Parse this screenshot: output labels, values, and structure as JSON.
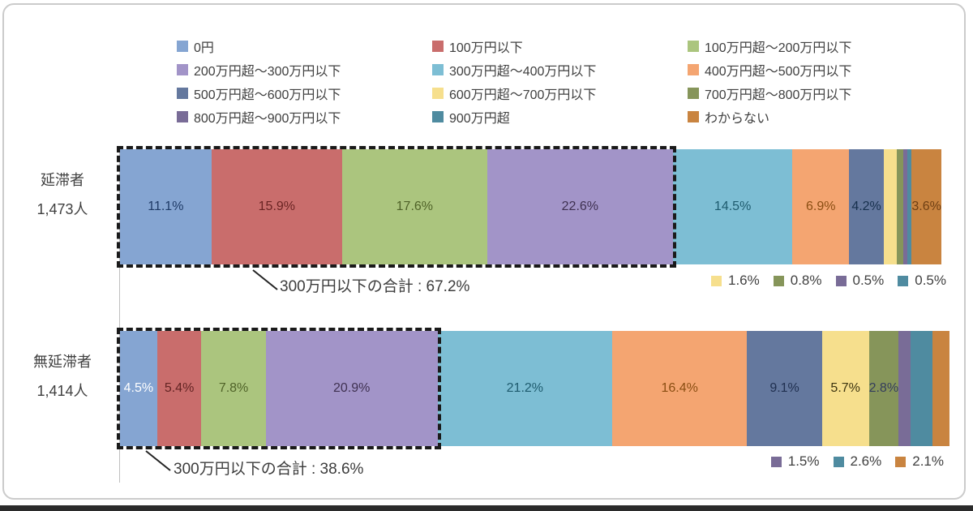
{
  "figure": {
    "background": "#ffffff",
    "frame_border_color": "#cbcbcb",
    "bottom_strip_color": "#2b2b2b",
    "dashed_box_color": "#1a1a1a"
  },
  "chart_data": {
    "type": "bar",
    "stacked": true,
    "orientation": "horizontal",
    "unit": "%",
    "x_range": [
      0,
      100
    ],
    "grid": false,
    "legend_position": "top",
    "categories": [
      "延滞者 1,473人",
      "無延滞者 1,414人"
    ],
    "series": [
      {
        "name": "0円",
        "color": "#85A5D2",
        "values": [
          11.1,
          4.5
        ]
      },
      {
        "name": "100万円以下",
        "color": "#C96D6C",
        "values": [
          15.9,
          5.4
        ]
      },
      {
        "name": "100万円超〜200万円以下",
        "color": "#ABC57E",
        "values": [
          17.6,
          7.8
        ]
      },
      {
        "name": "200万円超〜300万円以下",
        "color": "#A294C8",
        "values": [
          22.6,
          20.9
        ]
      },
      {
        "name": "300万円超〜400万円以下",
        "color": "#7DBED4",
        "values": [
          14.5,
          21.2
        ]
      },
      {
        "name": "400万円超〜500万円以下",
        "color": "#F4A571",
        "values": [
          6.9,
          16.4
        ]
      },
      {
        "name": "500万円超〜600万円以下",
        "color": "#64789E",
        "values": [
          4.2,
          9.1
        ]
      },
      {
        "name": "600万円超〜700万円以下",
        "color": "#F6DF8D",
        "values": [
          1.6,
          5.7
        ]
      },
      {
        "name": "700万円超〜800万円以下",
        "color": "#86955A",
        "values": [
          0.8,
          2.8
        ]
      },
      {
        "name": "800万円超〜900万円以下",
        "color": "#796C97",
        "values": [
          0.5,
          1.5
        ]
      },
      {
        "name": "900万円超",
        "color": "#4F8BA0",
        "values": [
          0.5,
          2.6
        ]
      },
      {
        "name": "わからない",
        "color": "#C98440",
        "values": [
          3.6,
          2.1
        ]
      }
    ],
    "bars": [
      {
        "category_line1": "延滞者",
        "category_line2": "1,473人",
        "inside": [
          true,
          true,
          true,
          true,
          true,
          true,
          true,
          false,
          false,
          false,
          false,
          true
        ],
        "label_colors": [
          "#1F3B67",
          "#6A2423",
          "#4F6228",
          "#3F3151",
          "#1E5B6E",
          "#8A4E12",
          "#17304D",
          "",
          "",
          "",
          "",
          "#6E3F14"
        ],
        "annotation": "300万円以下の合計 : 67.2%",
        "box_sum_label": "67.2%",
        "callouts": [
          {
            "series_index": 7,
            "text": "1.6%"
          },
          {
            "series_index": 8,
            "text": "0.8%"
          },
          {
            "series_index": 9,
            "text": "0.5%"
          },
          {
            "series_index": 10,
            "text": "0.5%"
          }
        ]
      },
      {
        "category_line1": "無延滞者",
        "category_line2": "1,414人",
        "inside": [
          true,
          true,
          true,
          true,
          true,
          true,
          true,
          true,
          true,
          false,
          false,
          false
        ],
        "label_colors": [
          "#FFFFFF",
          "#632423",
          "#4F6228",
          "#3F3151",
          "#1E5B6E",
          "#8A4E12",
          "#203050",
          "#3D3511",
          "#333C5C",
          "",
          "",
          ""
        ],
        "annotation": "300万円以下の合計 : 38.6%",
        "box_sum_label": "38.6%",
        "callouts": [
          {
            "series_index": 9,
            "text": "1.5%"
          },
          {
            "series_index": 10,
            "text": "2.6%"
          },
          {
            "series_index": 11,
            "text": "2.1%"
          }
        ]
      }
    ],
    "dashed_box_series_count": 4
  }
}
